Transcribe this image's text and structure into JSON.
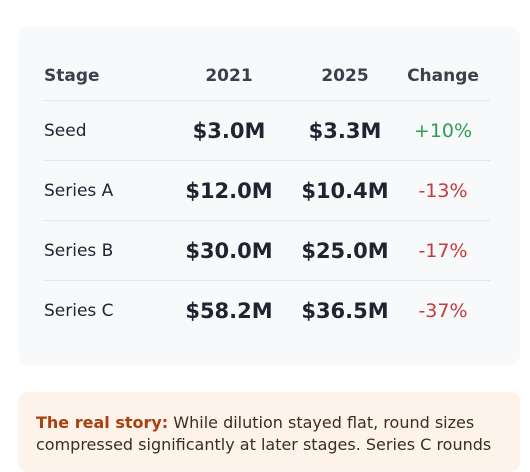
{
  "table": {
    "headers": [
      "Stage",
      "2021",
      "2025",
      "Change"
    ],
    "rows": [
      {
        "stage": "Seed",
        "v2021": "$3.0M",
        "v2025": "$3.3M",
        "change": "+10%",
        "direction": "up"
      },
      {
        "stage": "Series A",
        "v2021": "$12.0M",
        "v2025": "$10.4M",
        "change": "-13%",
        "direction": "down"
      },
      {
        "stage": "Series B",
        "v2021": "$30.0M",
        "v2025": "$25.0M",
        "change": "-17%",
        "direction": "down"
      },
      {
        "stage": "Series C",
        "v2021": "$58.2M",
        "v2025": "$36.5M",
        "change": "-37%",
        "direction": "down"
      }
    ]
  },
  "note": {
    "lead": "The real story:",
    "body": "While dilution stayed flat, round sizes compressed significantly at later stages. Series C rounds"
  },
  "colors": {
    "positive": "#2e9e52",
    "negative": "#c73a3a",
    "note_lead": "#a8400f"
  }
}
